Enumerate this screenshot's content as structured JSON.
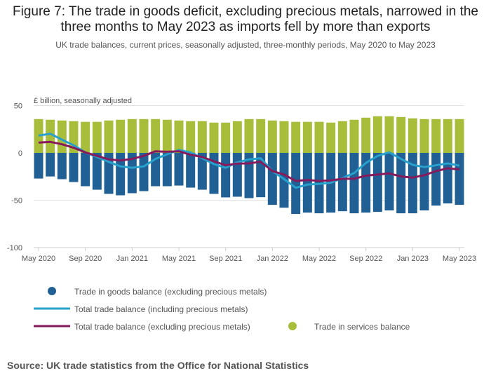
{
  "title": "Figure 7: The trade in goods deficit, excluding precious metals, narrowed in the three months to May 2023 as imports fell by more than exports",
  "subtitle": "UK trade balances, current prices, seasonally adjusted, three-monthly periods, May 2020 to May 2023",
  "source": "Source: UK trade statistics from the Office for National Statistics",
  "chart_data": {
    "type": "bar",
    "ylabel": "£ billion, seasonally adjusted",
    "ylim": [
      -100,
      50
    ],
    "yticks": [
      "50",
      "0",
      "-50",
      "-100"
    ],
    "ytick_values": [
      50,
      0,
      -50,
      -100
    ],
    "xtick_labels": [
      "May 2020",
      "Sep 2020",
      "Jan 2021",
      "May 2021",
      "Sep 2021",
      "Jan 2022",
      "May 2022",
      "Sep 2022",
      "Jan 2023",
      "May 2023"
    ],
    "xtick_every": 4,
    "n_periods": 37,
    "legend": {
      "goods": "Trade in goods balance (excluding precious metals)",
      "total_incl": "Total trade balance (including precious metals)",
      "total_excl": "Total trade balance (excluding precious metals)",
      "services": "Trade in services balance"
    },
    "colors": {
      "goods": "#206095",
      "services": "#a8bd3a",
      "total_incl": "#27a0cc",
      "total_excl": "#871a5b"
    },
    "series": [
      {
        "name": "goods",
        "type": "bar",
        "values": [
          -27.1,
          -24.9,
          -27.8,
          -30.8,
          -35.2,
          -38.9,
          -43.3,
          -44.8,
          -42.6,
          -40.4,
          -35.2,
          -35.2,
          -34.5,
          -36.7,
          -38.9,
          -43.3,
          -47,
          -46.3,
          -47.8,
          -46.8,
          -54.9,
          -57.9,
          -64.5,
          -63.1,
          -63.8,
          -63.1,
          -61.6,
          -63.8,
          -63.1,
          -62.3,
          -60.8,
          -63.8,
          -63.8,
          -60.8,
          -55.7,
          -53.4,
          -54.9
        ]
      },
      {
        "name": "services",
        "type": "bar",
        "values": [
          35.7,
          35,
          34.2,
          33.5,
          32.8,
          32.8,
          34.2,
          35,
          35.7,
          35.7,
          35.7,
          35,
          34.2,
          33.5,
          33.5,
          32,
          32,
          33.5,
          35.7,
          35.7,
          34.2,
          33.5,
          32.8,
          32.8,
          32.8,
          32,
          33.5,
          35,
          37.2,
          38.7,
          38.7,
          37.9,
          36.5,
          35.7,
          35.7,
          35.7,
          35.7
        ]
      },
      {
        "name": "total_incl",
        "type": "line",
        "values": [
          18.2,
          20.2,
          14,
          8,
          0.5,
          -4.4,
          -9.4,
          -14.3,
          -15.8,
          -14.3,
          -6.4,
          -1.5,
          3,
          0.5,
          -5.7,
          -11.8,
          -15.8,
          -9.9,
          -6.9,
          -5.7,
          -19.2,
          -27.8,
          -36.9,
          -33.5,
          -32.8,
          -31.5,
          -26.6,
          -21.2,
          -10.6,
          -3.2,
          0.5,
          -6.4,
          -12.6,
          -15,
          -13,
          -11.1,
          -13.5
        ]
      },
      {
        "name": "total_excl",
        "type": "line",
        "values": [
          10.8,
          11.6,
          9.1,
          5.4,
          0.5,
          -3.2,
          -6.9,
          -8.1,
          -6.4,
          -3.2,
          1.7,
          1.2,
          1.7,
          -2,
          -4.4,
          -8.9,
          -13,
          -11.3,
          -11.1,
          -9.4,
          -19.2,
          -22.9,
          -29.6,
          -28.6,
          -29.6,
          -29.1,
          -27.3,
          -27.3,
          -24.1,
          -22.9,
          -21.7,
          -24.9,
          -26.1,
          -23.6,
          -19.2,
          -16.3,
          -17.5
        ]
      }
    ]
  }
}
